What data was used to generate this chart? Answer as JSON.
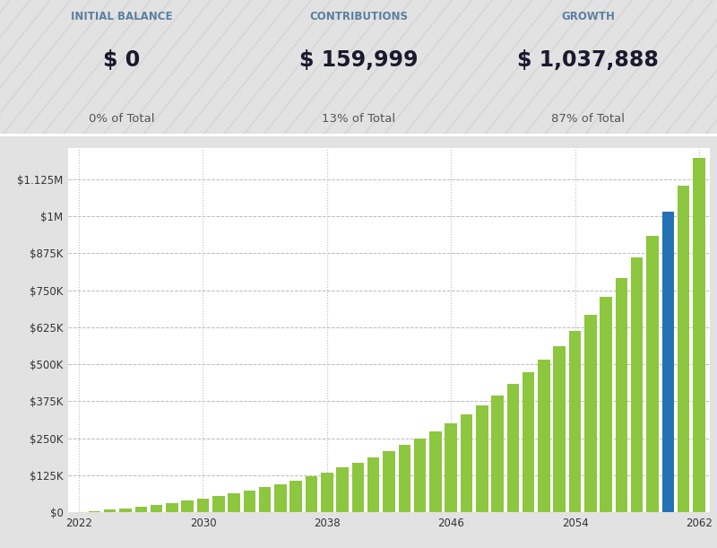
{
  "title_label1": "INITIAL BALANCE",
  "title_label2": "CONTRIBUTIONS",
  "title_label3": "GROWTH",
  "values_text": [
    "$ 0",
    "$ 159,999",
    "$ 1,037,888"
  ],
  "pcts": [
    "0% of Total",
    "13% of Total",
    "87% of Total"
  ],
  "start_year": 2022,
  "end_year": 2062,
  "blue_year": 2060,
  "bar_color_green": "#8DC63F",
  "bar_color_blue": "#2272B5",
  "bg_color_top": "#E2E2E2",
  "bg_color_chart": "#FFFFFF",
  "grid_color": "#BBBBBB",
  "yticks": [
    0,
    125000,
    250000,
    375000,
    500000,
    625000,
    750000,
    875000,
    1000000,
    1125000
  ],
  "ytick_labels": [
    "$0",
    "$125K",
    "$250K",
    "$375K",
    "$500K",
    "$625K",
    "$750K",
    "$875K",
    "$1M",
    "$1.125M"
  ],
  "xtick_years": [
    2022,
    2030,
    2038,
    2046,
    2054,
    2062
  ],
  "ylim_max": 1230000,
  "label_color": "#5B7FA0",
  "value_color": "#1A1A2E",
  "pct_color": "#555555",
  "stripe_color": "#D5D5D5"
}
